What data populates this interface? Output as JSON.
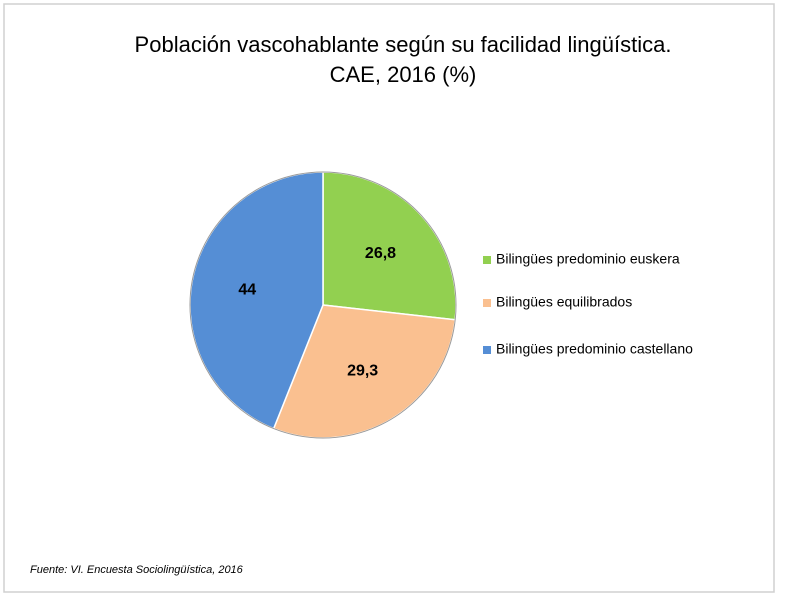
{
  "chart_data": {
    "type": "pie",
    "title": [
      "Población vascohablante  según su facilidad lingüística.",
      "CAE, 2016 (%)"
    ],
    "categories": [
      "Bilingües predominio euskera",
      "Bilingües equilibrados",
      "Bilingües predominio castellano"
    ],
    "values": [
      26.8,
      29.3,
      44
    ],
    "value_labels": [
      "26,8",
      "29,3",
      "44"
    ],
    "colors": [
      "#92d050",
      "#fac090",
      "#558ed5"
    ],
    "legend": "right",
    "source": "Fuente: VI. Encuesta Sociolingüística, 2016"
  }
}
